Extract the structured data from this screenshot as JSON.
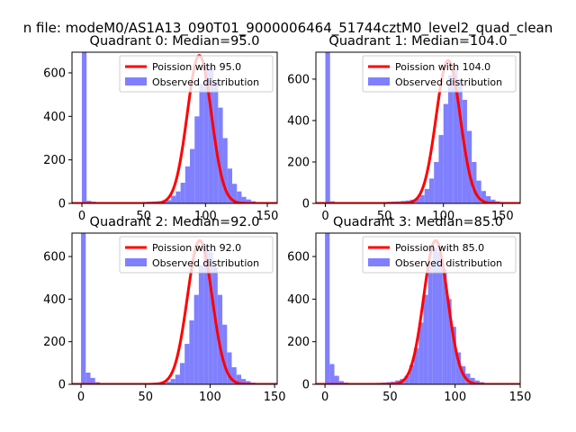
{
  "figure": {
    "suptitle": "n file: modeM0/AS1A13_090T01_9000006464_51744cztM0_level2_quad_clean"
  },
  "colors": {
    "hist": "#8080ff",
    "fit": "#ff0000"
  },
  "chart_data": [
    {
      "type": "bar",
      "title": "Quadrant 0: Median=95.0",
      "median": 95.0,
      "xlim": [
        -8,
        158
      ],
      "ylim": [
        0,
        695
      ],
      "xticks": [
        0,
        50,
        100,
        150
      ],
      "yticks": [
        0,
        200,
        400,
        600
      ],
      "hist_start": 0,
      "bin_width": 3.8,
      "counts": [
        700,
        12,
        8,
        4,
        3,
        2,
        2,
        2,
        3,
        3,
        4,
        5,
        6,
        7,
        8,
        9,
        10,
        12,
        15,
        35,
        55,
        95,
        170,
        250,
        400,
        550,
        640,
        630,
        560,
        440,
        300,
        160,
        90,
        55,
        30,
        18,
        10,
        6,
        4,
        3
      ],
      "poisson_lambda": 95.0,
      "poisson_peak": 680,
      "poisson_sigma": 9.75,
      "legend": {
        "fit": "Poission with 95.0",
        "observed": "Observed distribution"
      }
    },
    {
      "type": "bar",
      "title": "Quadrant 1: Median=104.0",
      "median": 104.0,
      "xlim": [
        -8,
        165
      ],
      "ylim": [
        0,
        730
      ],
      "xticks": [
        0,
        50,
        100,
        150
      ],
      "yticks": [
        0,
        200,
        400,
        600
      ],
      "hist_start": 0,
      "bin_width": 4.0,
      "counts": [
        730,
        10,
        6,
        4,
        3,
        2,
        2,
        2,
        3,
        3,
        4,
        5,
        6,
        8,
        9,
        10,
        12,
        14,
        18,
        25,
        40,
        70,
        120,
        200,
        330,
        480,
        620,
        650,
        600,
        500,
        350,
        200,
        110,
        60,
        35,
        18,
        10,
        6,
        4,
        3
      ],
      "poisson_lambda": 104.0,
      "poisson_peak": 690,
      "poisson_sigma": 10.2,
      "legend": {
        "fit": "Poission with 104.0",
        "observed": "Observed distribution"
      }
    },
    {
      "type": "bar",
      "title": "Quadrant 2: Median=92.0",
      "median": 92.0,
      "xlim": [
        -7,
        152
      ],
      "ylim": [
        0,
        710
      ],
      "xticks": [
        0,
        50,
        100,
        150
      ],
      "yticks": [
        0,
        200,
        400,
        600
      ],
      "hist_start": 0,
      "bin_width": 3.65,
      "counts": [
        710,
        55,
        30,
        10,
        5,
        3,
        2,
        2,
        2,
        3,
        3,
        4,
        4,
        5,
        6,
        7,
        8,
        10,
        12,
        25,
        45,
        100,
        190,
        300,
        420,
        560,
        650,
        620,
        550,
        420,
        280,
        150,
        80,
        45,
        25,
        15,
        8,
        5,
        3,
        2
      ],
      "poisson_lambda": 92.0,
      "poisson_peak": 675,
      "poisson_sigma": 9.6,
      "legend": {
        "fit": "Poission with 92.0",
        "observed": "Observed distribution"
      }
    },
    {
      "type": "bar",
      "title": "Quadrant 3: Median=85.0",
      "median": 85.0,
      "xlim": [
        -7,
        150
      ],
      "ylim": [
        0,
        710
      ],
      "xticks": [
        0,
        50,
        100,
        150
      ],
      "yticks": [
        0,
        200,
        400,
        600
      ],
      "hist_start": 0,
      "bin_width": 3.6,
      "counts": [
        710,
        95,
        40,
        15,
        8,
        5,
        4,
        3,
        3,
        4,
        5,
        7,
        8,
        10,
        12,
        18,
        25,
        40,
        90,
        170,
        290,
        420,
        560,
        640,
        620,
        540,
        400,
        270,
        150,
        85,
        50,
        30,
        18,
        10,
        6,
        4,
        3,
        2,
        2,
        1
      ],
      "poisson_lambda": 85.0,
      "poisson_peak": 675,
      "poisson_sigma": 9.2,
      "legend": {
        "fit": "Poission with 85.0",
        "observed": "Observed distribution"
      }
    }
  ]
}
